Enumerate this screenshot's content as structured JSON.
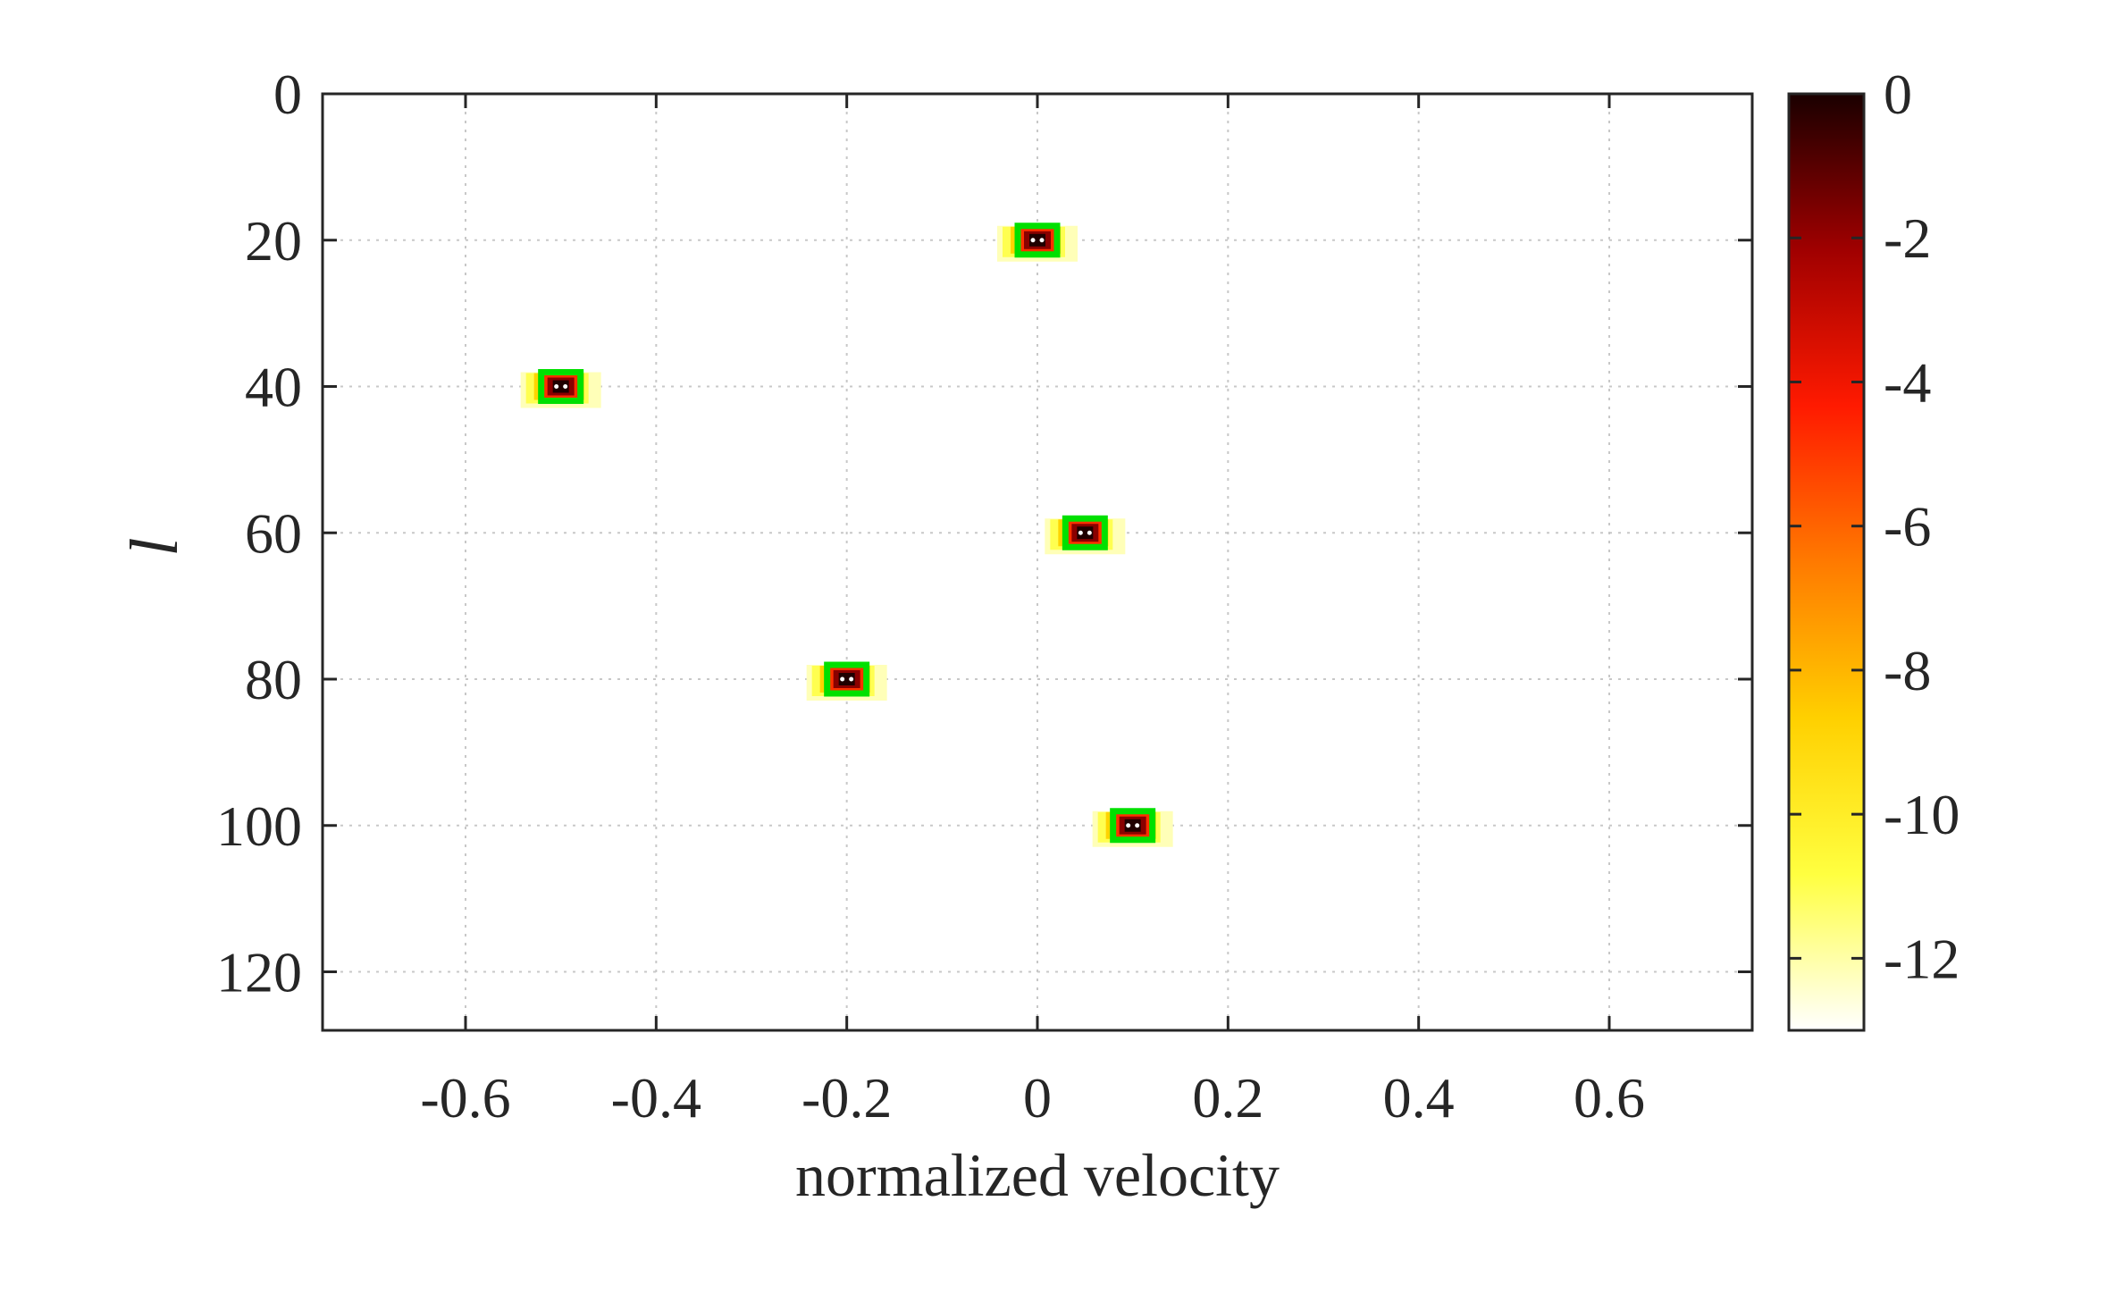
{
  "chart_data": {
    "type": "heatmap",
    "xlabel": "normalized velocity",
    "ylabel": "l",
    "xlim": [
      -0.75,
      0.75
    ],
    "ylim": [
      0,
      128
    ],
    "y_direction": "reversed",
    "grid": true,
    "x_ticks": [
      -0.6,
      -0.4,
      -0.2,
      0,
      0.2,
      0.4,
      0.6
    ],
    "x_tick_labels": [
      "-0.6",
      "-0.4",
      "-0.2",
      "0",
      "0.2",
      "0.4",
      "0.6"
    ],
    "y_ticks": [
      0,
      20,
      40,
      60,
      80,
      100,
      120
    ],
    "y_tick_labels": [
      "0",
      "20",
      "40",
      "60",
      "80",
      "100",
      "120"
    ],
    "colorbar": {
      "range": [
        -13,
        0
      ],
      "ticks": [
        0,
        -2,
        -4,
        -6,
        -8,
        -10,
        -12
      ],
      "tick_labels": [
        "0",
        "-2",
        "-4",
        "-6",
        "-8",
        "-10",
        "-12"
      ],
      "colormap": "hot-reversed",
      "colors": [
        "#ffffff",
        "#ffff40",
        "#ffd000",
        "#ff7a00",
        "#ff1a00",
        "#a00000",
        "#1a0000"
      ]
    },
    "markers": [
      {
        "x": 0.0,
        "y": 20,
        "value": 0
      },
      {
        "x": -0.5,
        "y": 40,
        "value": 0
      },
      {
        "x": 0.05,
        "y": 60,
        "value": 0
      },
      {
        "x": -0.2,
        "y": 80,
        "value": 0
      },
      {
        "x": 0.1,
        "y": 100,
        "value": 0
      }
    ],
    "marker_color": "#00e000"
  }
}
